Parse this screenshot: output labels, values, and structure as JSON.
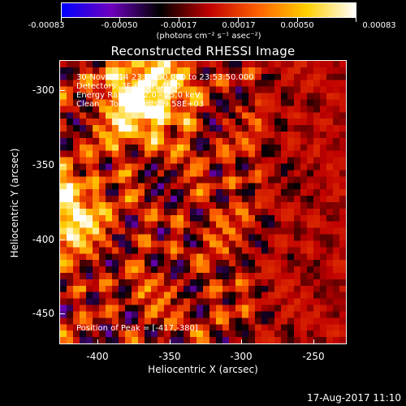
{
  "colorbar": {
    "tick_labels": [
      "-0.00083",
      "-0.00050",
      "-0.00017",
      "0.00017",
      "0.00050",
      "0.00083"
    ],
    "units": "(photons cm⁻² s⁻¹ asec⁻²)"
  },
  "title": "Reconstructed RHESSI Image",
  "annotations": {
    "time_range": "30-Nov-2014 23:43:50.000 to 23:53:50.000",
    "detectors": "Detectors: 3F 6F 9F, Att 0",
    "energy": "Energy Range: 12.0 - 25.0 keV",
    "method": "Clean    Total counts: 9.58E+03",
    "peak": "Position of Peak = [-417,-380]"
  },
  "axes": {
    "x_title": "Heliocentric X (arcsec)",
    "y_title": "Heliocentric Y (arcsec)",
    "x_ticks": [
      "-400",
      "-350",
      "-300",
      "-250"
    ],
    "y_ticks": [
      "-300",
      "-350",
      "-400",
      "-450"
    ]
  },
  "chart_data": {
    "type": "heatmap",
    "title": "Reconstructed RHESSI Image",
    "xlabel": "Heliocentric X (arcsec)",
    "ylabel": "Heliocentric Y (arcsec)",
    "xlim": [
      -425,
      -228
    ],
    "ylim": [
      -475,
      -282
    ],
    "x_ticks": [
      -400,
      -350,
      -300,
      -250
    ],
    "y_ticks": [
      -300,
      -350,
      -400,
      -450
    ],
    "colorbar_range": [
      -0.00083,
      0.00083
    ],
    "colorbar_ticks": [
      -0.00083,
      -0.0005,
      -0.00017,
      0.00017,
      0.0005,
      0.00083
    ],
    "colormap": [
      "#0000ff",
      "#7000c0",
      "#000000",
      "#c00000",
      "#ff6000",
      "#ffd000",
      "#ffffff"
    ],
    "peak_position": [
      -417,
      -380
    ]
  },
  "timestamp": "17-Aug-2017 11:10"
}
